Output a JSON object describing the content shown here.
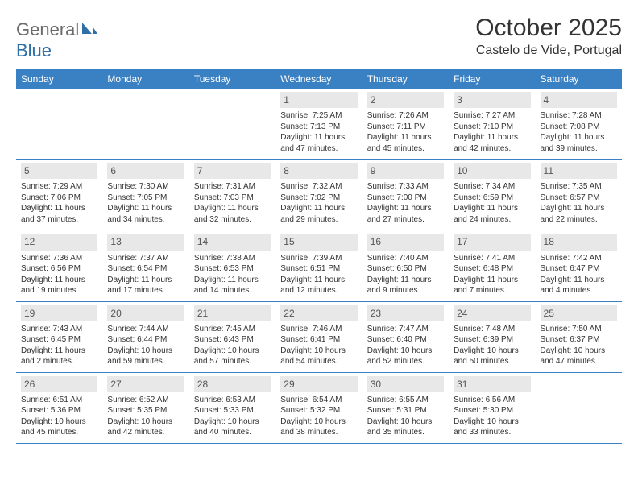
{
  "logo": {
    "text1": "General",
    "text2": "Blue"
  },
  "title": "October 2025",
  "location": "Castelo de Vide, Portugal",
  "colors": {
    "header_bg": "#3a81c4",
    "header_text": "#ffffff",
    "daynum_bg": "#e8e8e8",
    "border": "#3a81c4",
    "title_color": "#333333",
    "logo_gray": "#6b6b6b",
    "logo_blue": "#2f6fa8"
  },
  "weekdays": [
    "Sunday",
    "Monday",
    "Tuesday",
    "Wednesday",
    "Thursday",
    "Friday",
    "Saturday"
  ],
  "weeks": [
    [
      {
        "n": "",
        "sr": "",
        "ss": "",
        "dl": ""
      },
      {
        "n": "",
        "sr": "",
        "ss": "",
        "dl": ""
      },
      {
        "n": "",
        "sr": "",
        "ss": "",
        "dl": ""
      },
      {
        "n": "1",
        "sr": "Sunrise: 7:25 AM",
        "ss": "Sunset: 7:13 PM",
        "dl": "Daylight: 11 hours and 47 minutes."
      },
      {
        "n": "2",
        "sr": "Sunrise: 7:26 AM",
        "ss": "Sunset: 7:11 PM",
        "dl": "Daylight: 11 hours and 45 minutes."
      },
      {
        "n": "3",
        "sr": "Sunrise: 7:27 AM",
        "ss": "Sunset: 7:10 PM",
        "dl": "Daylight: 11 hours and 42 minutes."
      },
      {
        "n": "4",
        "sr": "Sunrise: 7:28 AM",
        "ss": "Sunset: 7:08 PM",
        "dl": "Daylight: 11 hours and 39 minutes."
      }
    ],
    [
      {
        "n": "5",
        "sr": "Sunrise: 7:29 AM",
        "ss": "Sunset: 7:06 PM",
        "dl": "Daylight: 11 hours and 37 minutes."
      },
      {
        "n": "6",
        "sr": "Sunrise: 7:30 AM",
        "ss": "Sunset: 7:05 PM",
        "dl": "Daylight: 11 hours and 34 minutes."
      },
      {
        "n": "7",
        "sr": "Sunrise: 7:31 AM",
        "ss": "Sunset: 7:03 PM",
        "dl": "Daylight: 11 hours and 32 minutes."
      },
      {
        "n": "8",
        "sr": "Sunrise: 7:32 AM",
        "ss": "Sunset: 7:02 PM",
        "dl": "Daylight: 11 hours and 29 minutes."
      },
      {
        "n": "9",
        "sr": "Sunrise: 7:33 AM",
        "ss": "Sunset: 7:00 PM",
        "dl": "Daylight: 11 hours and 27 minutes."
      },
      {
        "n": "10",
        "sr": "Sunrise: 7:34 AM",
        "ss": "Sunset: 6:59 PM",
        "dl": "Daylight: 11 hours and 24 minutes."
      },
      {
        "n": "11",
        "sr": "Sunrise: 7:35 AM",
        "ss": "Sunset: 6:57 PM",
        "dl": "Daylight: 11 hours and 22 minutes."
      }
    ],
    [
      {
        "n": "12",
        "sr": "Sunrise: 7:36 AM",
        "ss": "Sunset: 6:56 PM",
        "dl": "Daylight: 11 hours and 19 minutes."
      },
      {
        "n": "13",
        "sr": "Sunrise: 7:37 AM",
        "ss": "Sunset: 6:54 PM",
        "dl": "Daylight: 11 hours and 17 minutes."
      },
      {
        "n": "14",
        "sr": "Sunrise: 7:38 AM",
        "ss": "Sunset: 6:53 PM",
        "dl": "Daylight: 11 hours and 14 minutes."
      },
      {
        "n": "15",
        "sr": "Sunrise: 7:39 AM",
        "ss": "Sunset: 6:51 PM",
        "dl": "Daylight: 11 hours and 12 minutes."
      },
      {
        "n": "16",
        "sr": "Sunrise: 7:40 AM",
        "ss": "Sunset: 6:50 PM",
        "dl": "Daylight: 11 hours and 9 minutes."
      },
      {
        "n": "17",
        "sr": "Sunrise: 7:41 AM",
        "ss": "Sunset: 6:48 PM",
        "dl": "Daylight: 11 hours and 7 minutes."
      },
      {
        "n": "18",
        "sr": "Sunrise: 7:42 AM",
        "ss": "Sunset: 6:47 PM",
        "dl": "Daylight: 11 hours and 4 minutes."
      }
    ],
    [
      {
        "n": "19",
        "sr": "Sunrise: 7:43 AM",
        "ss": "Sunset: 6:45 PM",
        "dl": "Daylight: 11 hours and 2 minutes."
      },
      {
        "n": "20",
        "sr": "Sunrise: 7:44 AM",
        "ss": "Sunset: 6:44 PM",
        "dl": "Daylight: 10 hours and 59 minutes."
      },
      {
        "n": "21",
        "sr": "Sunrise: 7:45 AM",
        "ss": "Sunset: 6:43 PM",
        "dl": "Daylight: 10 hours and 57 minutes."
      },
      {
        "n": "22",
        "sr": "Sunrise: 7:46 AM",
        "ss": "Sunset: 6:41 PM",
        "dl": "Daylight: 10 hours and 54 minutes."
      },
      {
        "n": "23",
        "sr": "Sunrise: 7:47 AM",
        "ss": "Sunset: 6:40 PM",
        "dl": "Daylight: 10 hours and 52 minutes."
      },
      {
        "n": "24",
        "sr": "Sunrise: 7:48 AM",
        "ss": "Sunset: 6:39 PM",
        "dl": "Daylight: 10 hours and 50 minutes."
      },
      {
        "n": "25",
        "sr": "Sunrise: 7:50 AM",
        "ss": "Sunset: 6:37 PM",
        "dl": "Daylight: 10 hours and 47 minutes."
      }
    ],
    [
      {
        "n": "26",
        "sr": "Sunrise: 6:51 AM",
        "ss": "Sunset: 5:36 PM",
        "dl": "Daylight: 10 hours and 45 minutes."
      },
      {
        "n": "27",
        "sr": "Sunrise: 6:52 AM",
        "ss": "Sunset: 5:35 PM",
        "dl": "Daylight: 10 hours and 42 minutes."
      },
      {
        "n": "28",
        "sr": "Sunrise: 6:53 AM",
        "ss": "Sunset: 5:33 PM",
        "dl": "Daylight: 10 hours and 40 minutes."
      },
      {
        "n": "29",
        "sr": "Sunrise: 6:54 AM",
        "ss": "Sunset: 5:32 PM",
        "dl": "Daylight: 10 hours and 38 minutes."
      },
      {
        "n": "30",
        "sr": "Sunrise: 6:55 AM",
        "ss": "Sunset: 5:31 PM",
        "dl": "Daylight: 10 hours and 35 minutes."
      },
      {
        "n": "31",
        "sr": "Sunrise: 6:56 AM",
        "ss": "Sunset: 5:30 PM",
        "dl": "Daylight: 10 hours and 33 minutes."
      },
      {
        "n": "",
        "sr": "",
        "ss": "",
        "dl": ""
      }
    ]
  ]
}
